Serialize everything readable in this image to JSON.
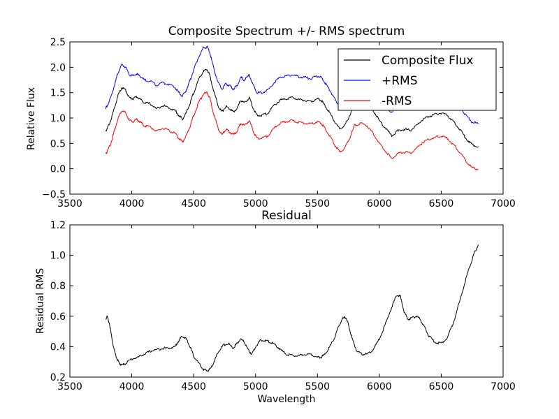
{
  "chart_data": [
    {
      "type": "line",
      "title": "Composite Spectrum +/- RMS spectrum",
      "xlabel": "",
      "ylabel": "Relative Flux",
      "xlim": [
        3500,
        7000
      ],
      "ylim": [
        -0.5,
        2.5
      ],
      "xticks": [
        3500,
        4000,
        4500,
        5000,
        5500,
        6000,
        6500,
        7000
      ],
      "yticks": [
        -0.5,
        0.0,
        0.5,
        1.0,
        1.5,
        2.0,
        2.5
      ],
      "xtick_labels": [
        "3500",
        "4000",
        "4500",
        "5000",
        "5500",
        "6000",
        "6500",
        "7000"
      ],
      "ytick_labels": [
        "−0.5",
        "0.0",
        "0.5",
        "1.0",
        "1.5",
        "2.0",
        "2.5"
      ],
      "grid": false,
      "legend_position": "top-right",
      "x": [
        3790,
        3800,
        3830,
        3860,
        3890,
        3920,
        3950,
        3980,
        4010,
        4040,
        4070,
        4100,
        4150,
        4200,
        4250,
        4300,
        4350,
        4380,
        4410,
        4440,
        4470,
        4500,
        4540,
        4580,
        4610,
        4630,
        4660,
        4700,
        4730,
        4760,
        4790,
        4820,
        4850,
        4880,
        4910,
        4950,
        4980,
        5010,
        5050,
        5100,
        5150,
        5200,
        5250,
        5300,
        5350,
        5400,
        5450,
        5500,
        5530,
        5560,
        5600,
        5640,
        5680,
        5720,
        5760,
        5800,
        5850,
        5900,
        5950,
        6000,
        6050,
        6100,
        6150,
        6200,
        6250,
        6300,
        6350,
        6400,
        6450,
        6500,
        6550,
        6600,
        6650,
        6700,
        6750,
        6800
      ],
      "series": [
        {
          "name": "Composite Flux",
          "color": "#000000",
          "values": [
            0.75,
            0.78,
            0.95,
            1.2,
            1.45,
            1.6,
            1.55,
            1.4,
            1.38,
            1.42,
            1.37,
            1.3,
            1.28,
            1.18,
            1.25,
            1.2,
            1.15,
            1.05,
            0.98,
            1.1,
            1.28,
            1.5,
            1.75,
            1.93,
            1.95,
            1.85,
            1.55,
            1.23,
            1.12,
            1.23,
            1.18,
            1.12,
            1.18,
            1.35,
            1.3,
            1.4,
            1.2,
            1.05,
            1.05,
            1.1,
            1.25,
            1.35,
            1.38,
            1.4,
            1.36,
            1.35,
            1.33,
            1.38,
            1.35,
            1.25,
            1.1,
            0.92,
            0.78,
            0.85,
            1.05,
            1.3,
            1.35,
            1.3,
            1.15,
            0.95,
            0.8,
            0.65,
            0.75,
            0.78,
            0.76,
            0.85,
            0.97,
            1.03,
            1.07,
            1.1,
            1.05,
            0.92,
            0.78,
            0.6,
            0.47,
            0.44
          ]
        },
        {
          "name": "+RMS",
          "color": "#0000ff",
          "values": [
            1.2,
            1.23,
            1.4,
            1.65,
            1.9,
            2.05,
            2.0,
            1.85,
            1.83,
            1.87,
            1.82,
            1.75,
            1.73,
            1.65,
            1.7,
            1.66,
            1.6,
            1.5,
            1.43,
            1.55,
            1.73,
            1.95,
            2.2,
            2.38,
            2.4,
            2.3,
            2.0,
            1.68,
            1.57,
            1.68,
            1.63,
            1.57,
            1.63,
            1.8,
            1.75,
            1.85,
            1.65,
            1.5,
            1.5,
            1.55,
            1.7,
            1.8,
            1.83,
            1.85,
            1.81,
            1.8,
            1.78,
            1.83,
            1.8,
            1.7,
            1.55,
            1.37,
            1.23,
            1.3,
            1.5,
            1.75,
            1.8,
            1.75,
            1.6,
            1.4,
            1.25,
            1.1,
            1.2,
            1.23,
            1.21,
            1.3,
            1.42,
            1.48,
            1.52,
            1.55,
            1.5,
            1.37,
            1.23,
            1.05,
            0.92,
            0.89
          ]
        },
        {
          "name": "-RMS",
          "color": "#ff0000",
          "values": [
            0.3,
            0.33,
            0.5,
            0.75,
            1.0,
            1.15,
            1.1,
            0.95,
            0.93,
            0.97,
            0.92,
            0.85,
            0.83,
            0.73,
            0.8,
            0.75,
            0.7,
            0.6,
            0.53,
            0.65,
            0.83,
            1.05,
            1.3,
            1.48,
            1.5,
            1.4,
            1.1,
            0.78,
            0.67,
            0.78,
            0.73,
            0.67,
            0.73,
            0.9,
            0.85,
            0.95,
            0.75,
            0.6,
            0.6,
            0.65,
            0.8,
            0.9,
            0.93,
            0.95,
            0.91,
            0.9,
            0.88,
            0.93,
            0.9,
            0.8,
            0.65,
            0.47,
            0.33,
            0.4,
            0.6,
            0.85,
            0.9,
            0.85,
            0.7,
            0.5,
            0.35,
            0.2,
            0.3,
            0.33,
            0.31,
            0.4,
            0.52,
            0.58,
            0.62,
            0.65,
            0.6,
            0.47,
            0.33,
            0.15,
            0.02,
            -0.01
          ]
        }
      ]
    },
    {
      "type": "line",
      "title": "Residual",
      "xlabel": "Wavelength",
      "ylabel": "Residual RMS",
      "xlim": [
        3500,
        7000
      ],
      "ylim": [
        0.2,
        1.2
      ],
      "xticks": [
        3500,
        4000,
        4500,
        5000,
        5500,
        6000,
        6500,
        7000
      ],
      "yticks": [
        0.2,
        0.4,
        0.6,
        0.8,
        1.0,
        1.2
      ],
      "xtick_labels": [
        "3500",
        "4000",
        "4500",
        "5000",
        "5500",
        "6000",
        "6500",
        "7000"
      ],
      "ytick_labels": [
        "0.2",
        "0.4",
        "0.6",
        "0.8",
        "1.0",
        "1.2"
      ],
      "grid": false,
      "x": [
        3790,
        3800,
        3820,
        3840,
        3860,
        3880,
        3900,
        3920,
        3950,
        4000,
        4050,
        4100,
        4150,
        4200,
        4250,
        4300,
        4350,
        4380,
        4410,
        4440,
        4470,
        4500,
        4540,
        4580,
        4610,
        4640,
        4670,
        4700,
        4740,
        4780,
        4820,
        4850,
        4880,
        4910,
        4940,
        4970,
        5000,
        5040,
        5080,
        5120,
        5160,
        5200,
        5250,
        5300,
        5350,
        5400,
        5450,
        5500,
        5530,
        5560,
        5600,
        5640,
        5670,
        5700,
        5720,
        5750,
        5780,
        5820,
        5860,
        5900,
        5950,
        6000,
        6050,
        6100,
        6140,
        6170,
        6200,
        6230,
        6270,
        6300,
        6330,
        6370,
        6400,
        6450,
        6500,
        6550,
        6600,
        6650,
        6700,
        6740,
        6770,
        6800
      ],
      "series": [
        {
          "name": "",
          "color": "#000000",
          "values": [
            0.58,
            0.6,
            0.55,
            0.45,
            0.37,
            0.32,
            0.29,
            0.28,
            0.29,
            0.32,
            0.33,
            0.35,
            0.37,
            0.38,
            0.39,
            0.39,
            0.4,
            0.44,
            0.47,
            0.45,
            0.4,
            0.34,
            0.29,
            0.25,
            0.24,
            0.26,
            0.31,
            0.37,
            0.41,
            0.42,
            0.39,
            0.42,
            0.45,
            0.43,
            0.38,
            0.35,
            0.4,
            0.44,
            0.44,
            0.43,
            0.41,
            0.38,
            0.35,
            0.34,
            0.34,
            0.35,
            0.35,
            0.33,
            0.33,
            0.35,
            0.4,
            0.46,
            0.53,
            0.58,
            0.6,
            0.55,
            0.45,
            0.37,
            0.35,
            0.35,
            0.38,
            0.45,
            0.55,
            0.66,
            0.74,
            0.73,
            0.63,
            0.58,
            0.59,
            0.6,
            0.58,
            0.52,
            0.47,
            0.43,
            0.42,
            0.46,
            0.56,
            0.7,
            0.85,
            0.95,
            1.02,
            1.07
          ]
        }
      ]
    }
  ]
}
